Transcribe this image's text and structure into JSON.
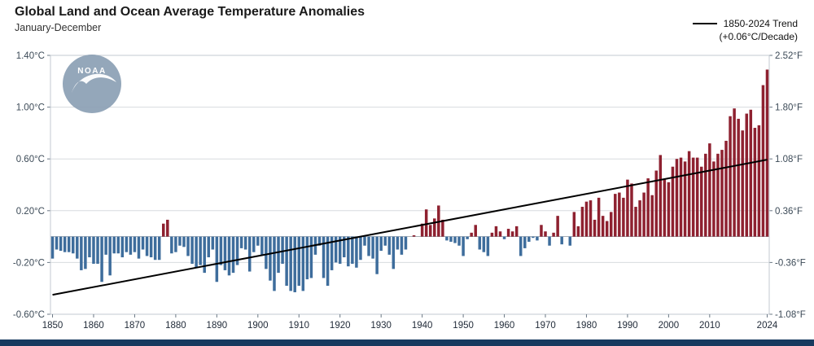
{
  "title": "Global Land and Ocean Average Temperature Anomalies",
  "subtitle": "January-December",
  "legend": {
    "trend_label": "1850-2024 Trend",
    "trend_sublabel": "(+0.06°C/Decade)"
  },
  "logo": {
    "name": "noaa-logo",
    "text": "NOAA"
  },
  "colors": {
    "positive_bar": "#8e2130",
    "negative_bar": "#3e6d9c",
    "trend_line": "#000000",
    "grid": "#d7dbdf",
    "frame": "#c3cad1",
    "zero_line": "#8a949c",
    "axis_text": "#3c4a57",
    "x_text": "#1f2937",
    "footer": "#173a5f",
    "logo_circle": "#8ba0b4"
  },
  "axes": {
    "left_ticks": [
      "1.40°C",
      "1.00°C",
      "0.60°C",
      "0.20°C",
      "-0.20°C",
      "-0.60°C"
    ],
    "left_values": [
      1.4,
      1.0,
      0.6,
      0.2,
      -0.2,
      -0.6
    ],
    "right_ticks": [
      "2.52°F",
      "1.80°F",
      "1.08°F",
      "0.36°F",
      "-0.36°F",
      "-1.08°F"
    ],
    "x_ticks": [
      1850,
      1860,
      1870,
      1880,
      1890,
      1900,
      1910,
      1920,
      1930,
      1940,
      1950,
      1960,
      1970,
      1980,
      1990,
      2000,
      2010,
      2024
    ]
  },
  "chart_data": {
    "type": "bar",
    "title": "Global Land and Ocean Average Temperature Anomalies",
    "subtitle": "January-December",
    "ylabel_left": "°C",
    "ylabel_right": "°F",
    "ylim": [
      -0.6,
      1.4
    ],
    "start_year": 1850,
    "end_year": 2024,
    "trend": {
      "start_year": 1850,
      "end_year": 2024,
      "start_value": -0.45,
      "rate_per_decade": 0.06
    },
    "values": [
      -0.17,
      -0.1,
      -0.11,
      -0.12,
      -0.12,
      -0.13,
      -0.17,
      -0.26,
      -0.25,
      -0.16,
      -0.21,
      -0.21,
      -0.35,
      -0.14,
      -0.3,
      -0.13,
      -0.13,
      -0.16,
      -0.12,
      -0.14,
      -0.12,
      -0.17,
      -0.1,
      -0.15,
      -0.16,
      -0.18,
      -0.18,
      0.1,
      0.13,
      -0.13,
      -0.12,
      -0.07,
      -0.08,
      -0.15,
      -0.21,
      -0.24,
      -0.22,
      -0.28,
      -0.16,
      -0.1,
      -0.35,
      -0.22,
      -0.26,
      -0.3,
      -0.28,
      -0.22,
      -0.09,
      -0.1,
      -0.27,
      -0.12,
      -0.07,
      -0.14,
      -0.25,
      -0.34,
      -0.42,
      -0.28,
      -0.21,
      -0.38,
      -0.42,
      -0.43,
      -0.38,
      -0.42,
      -0.33,
      -0.32,
      -0.14,
      -0.07,
      -0.32,
      -0.38,
      -0.26,
      -0.2,
      -0.21,
      -0.16,
      -0.23,
      -0.21,
      -0.24,
      -0.18,
      -0.07,
      -0.15,
      -0.17,
      -0.29,
      -0.11,
      -0.07,
      -0.14,
      -0.25,
      -0.1,
      -0.14,
      -0.1,
      0.0,
      0.01,
      0.0,
      0.1,
      0.21,
      0.09,
      0.14,
      0.24,
      0.13,
      -0.03,
      -0.04,
      -0.05,
      -0.07,
      -0.15,
      -0.02,
      0.03,
      0.09,
      -0.1,
      -0.12,
      -0.15,
      0.03,
      0.08,
      0.04,
      -0.02,
      0.06,
      0.04,
      0.08,
      -0.15,
      -0.09,
      -0.04,
      -0.01,
      -0.03,
      0.09,
      0.04,
      -0.07,
      0.03,
      0.16,
      -0.06,
      0.0,
      -0.07,
      0.19,
      0.08,
      0.23,
      0.27,
      0.28,
      0.13,
      0.3,
      0.16,
      0.12,
      0.19,
      0.33,
      0.34,
      0.3,
      0.44,
      0.41,
      0.23,
      0.28,
      0.34,
      0.45,
      0.32,
      0.51,
      0.63,
      0.44,
      0.42,
      0.54,
      0.6,
      0.61,
      0.58,
      0.66,
      0.61,
      0.61,
      0.54,
      0.64,
      0.72,
      0.58,
      0.64,
      0.67,
      0.74,
      0.93,
      0.99,
      0.91,
      0.82,
      0.95,
      0.98,
      0.84,
      0.86,
      1.17,
      1.29
    ]
  }
}
